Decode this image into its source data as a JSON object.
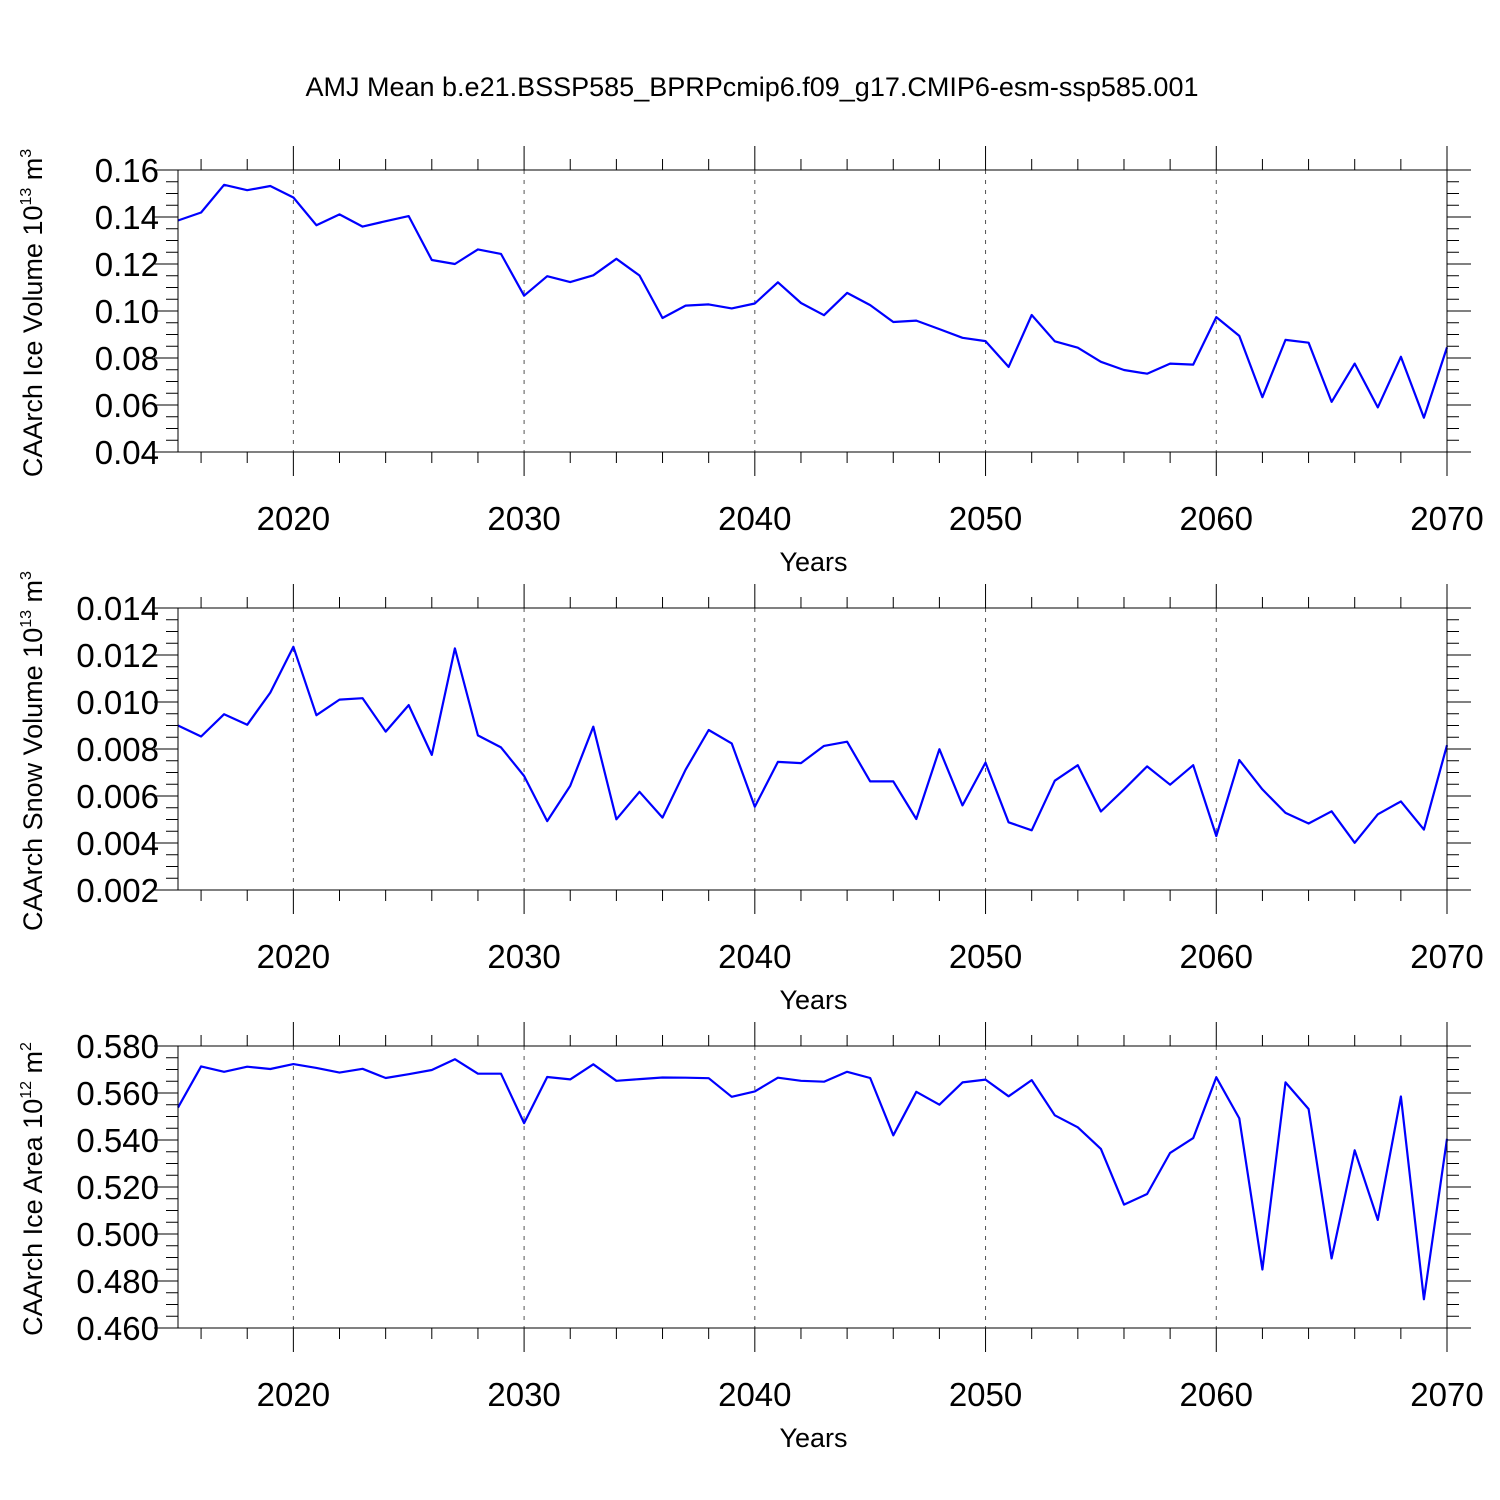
{
  "figure": {
    "title": "AMJ Mean b.e21.BSSP585_BPRPcmip6.f09_g17.CMIP6-esm-ssp585.001"
  },
  "colors": {
    "line": "#0000ff",
    "axis": "#000000",
    "grid": "#555555",
    "background": "#ffffff"
  },
  "chart_data": [
    {
      "type": "line",
      "title": "",
      "xlabel": "Years",
      "ylabel": "CAArch Ice Volume 10",
      "ylabel_exp": "13",
      "ylabel_unit": "m",
      "ylabel_unit_exp": "3",
      "xlim": [
        2015,
        2070
      ],
      "ylim": [
        0.04,
        0.16
      ],
      "x_ticks": [
        2020,
        2030,
        2040,
        2050,
        2060,
        2070
      ],
      "x_tick_labels": [
        "2020",
        "2030",
        "2040",
        "2050",
        "2060",
        "2070"
      ],
      "y_ticks": [
        0.04,
        0.06,
        0.08,
        0.1,
        0.12,
        0.14,
        0.16
      ],
      "y_tick_labels": [
        "0.04",
        "0.06",
        "0.08",
        "0.10",
        "0.12",
        "0.14",
        "0.16"
      ],
      "y_minor_step": 0.005,
      "grid": "vertical dashed at major x ticks",
      "series": [
        {
          "name": "CAArch Ice Volume",
          "x": [
            2015,
            2016,
            2017,
            2018,
            2019,
            2020,
            2021,
            2022,
            2023,
            2024,
            2025,
            2026,
            2027,
            2028,
            2029,
            2030,
            2031,
            2032,
            2033,
            2034,
            2035,
            2036,
            2037,
            2038,
            2039,
            2040,
            2041,
            2042,
            2043,
            2044,
            2045,
            2046,
            2047,
            2048,
            2049,
            2050,
            2051,
            2052,
            2053,
            2054,
            2055,
            2056,
            2057,
            2058,
            2059,
            2060,
            2061,
            2062,
            2063,
            2064,
            2065,
            2066,
            2067,
            2068,
            2069,
            2070
          ],
          "values": [
            0.1385,
            0.1419,
            0.1537,
            0.1514,
            0.1532,
            0.1483,
            0.1365,
            0.1411,
            0.1359,
            0.1382,
            0.1404,
            0.1217,
            0.12,
            0.1262,
            0.1243,
            0.1065,
            0.1148,
            0.1123,
            0.1152,
            0.1222,
            0.1151,
            0.097,
            0.1023,
            0.1028,
            0.1011,
            0.1032,
            0.1122,
            0.1034,
            0.0982,
            0.1077,
            0.1025,
            0.0953,
            0.0959,
            0.0923,
            0.0886,
            0.0872,
            0.0762,
            0.0983,
            0.0871,
            0.0844,
            0.0784,
            0.0749,
            0.0733,
            0.0776,
            0.0772,
            0.0974,
            0.0894,
            0.0633,
            0.0877,
            0.0865,
            0.0613,
            0.0776,
            0.059,
            0.0805,
            0.0546,
            0.0845
          ]
        }
      ]
    },
    {
      "type": "line",
      "title": "",
      "xlabel": "Years",
      "ylabel": "CAArch Snow Volume 10",
      "ylabel_exp": "13",
      "ylabel_unit": "m",
      "ylabel_unit_exp": "3",
      "xlim": [
        2015,
        2070
      ],
      "ylim": [
        0.002,
        0.014
      ],
      "x_ticks": [
        2020,
        2030,
        2040,
        2050,
        2060,
        2070
      ],
      "x_tick_labels": [
        "2020",
        "2030",
        "2040",
        "2050",
        "2060",
        "2070"
      ],
      "y_ticks": [
        0.002,
        0.004,
        0.006,
        0.008,
        0.01,
        0.012,
        0.014
      ],
      "y_tick_labels": [
        "0.002",
        "0.004",
        "0.006",
        "0.008",
        "0.010",
        "0.012",
        "0.014"
      ],
      "y_minor_step": 0.0005,
      "grid": "vertical dashed at major x ticks",
      "series": [
        {
          "name": "CAArch Snow Volume",
          "x": [
            2015,
            2016,
            2017,
            2018,
            2019,
            2020,
            2021,
            2022,
            2023,
            2024,
            2025,
            2026,
            2027,
            2028,
            2029,
            2030,
            2031,
            2032,
            2033,
            2034,
            2035,
            2036,
            2037,
            2038,
            2039,
            2040,
            2041,
            2042,
            2043,
            2044,
            2045,
            2046,
            2047,
            2048,
            2049,
            2050,
            2051,
            2052,
            2053,
            2054,
            2055,
            2056,
            2057,
            2058,
            2059,
            2060,
            2061,
            2062,
            2063,
            2064,
            2065,
            2066,
            2067,
            2068,
            2069,
            2070
          ],
          "values": [
            0.009,
            0.00853,
            0.00948,
            0.00903,
            0.0104,
            0.01235,
            0.00944,
            0.0101,
            0.01016,
            0.00874,
            0.00987,
            0.00775,
            0.01228,
            0.00858,
            0.00807,
            0.00685,
            0.00493,
            0.00643,
            0.00895,
            0.00501,
            0.00618,
            0.00508,
            0.00712,
            0.00881,
            0.00824,
            0.00554,
            0.00745,
            0.0074,
            0.00813,
            0.00831,
            0.00662,
            0.00662,
            0.00502,
            0.00799,
            0.0056,
            0.00742,
            0.00488,
            0.00454,
            0.00665,
            0.00731,
            0.00534,
            0.00628,
            0.00726,
            0.00648,
            0.00731,
            0.0043,
            0.00753,
            0.00628,
            0.00528,
            0.00483,
            0.00535,
            0.00401,
            0.00522,
            0.00577,
            0.00457,
            0.00816
          ]
        }
      ]
    },
    {
      "type": "line",
      "title": "",
      "xlabel": "Years",
      "ylabel": "CAArch Ice Area 10",
      "ylabel_exp": "12",
      "ylabel_unit": "m",
      "ylabel_unit_exp": "2",
      "xlim": [
        2015,
        2070
      ],
      "ylim": [
        0.46,
        0.58
      ],
      "x_ticks": [
        2020,
        2030,
        2040,
        2050,
        2060,
        2070
      ],
      "x_tick_labels": [
        "2020",
        "2030",
        "2040",
        "2050",
        "2060",
        "2070"
      ],
      "y_ticks": [
        0.46,
        0.48,
        0.5,
        0.52,
        0.54,
        0.56,
        0.58
      ],
      "y_tick_labels": [
        "0.460",
        "0.480",
        "0.500",
        "0.520",
        "0.540",
        "0.560",
        "0.580"
      ],
      "y_minor_step": 0.005,
      "grid": "vertical dashed at major x ticks",
      "series": [
        {
          "name": "CAArch Ice Area",
          "x": [
            2015,
            2016,
            2017,
            2018,
            2019,
            2020,
            2021,
            2022,
            2023,
            2024,
            2025,
            2026,
            2027,
            2028,
            2029,
            2030,
            2031,
            2032,
            2033,
            2034,
            2035,
            2036,
            2037,
            2038,
            2039,
            2040,
            2041,
            2042,
            2043,
            2044,
            2045,
            2046,
            2047,
            2048,
            2049,
            2050,
            2051,
            2052,
            2053,
            2054,
            2055,
            2056,
            2057,
            2058,
            2059,
            2060,
            2061,
            2062,
            2063,
            2064,
            2065,
            2066,
            2067,
            2068,
            2069,
            2070
          ],
          "values": [
            0.5538,
            0.5713,
            0.569,
            0.5712,
            0.5702,
            0.5723,
            0.5707,
            0.5687,
            0.5703,
            0.5664,
            0.568,
            0.5698,
            0.5744,
            0.5682,
            0.5682,
            0.5472,
            0.5668,
            0.5658,
            0.5722,
            0.5652,
            0.5659,
            0.5666,
            0.5665,
            0.5663,
            0.5584,
            0.5607,
            0.5665,
            0.5652,
            0.5648,
            0.569,
            0.5664,
            0.542,
            0.5605,
            0.555,
            0.5645,
            0.5657,
            0.5586,
            0.5655,
            0.5505,
            0.5454,
            0.5362,
            0.5125,
            0.517,
            0.5345,
            0.5408,
            0.5667,
            0.5492,
            0.4849,
            0.5645,
            0.5532,
            0.4896,
            0.5356,
            0.506,
            0.5585,
            0.4722,
            0.5405
          ]
        }
      ]
    }
  ]
}
